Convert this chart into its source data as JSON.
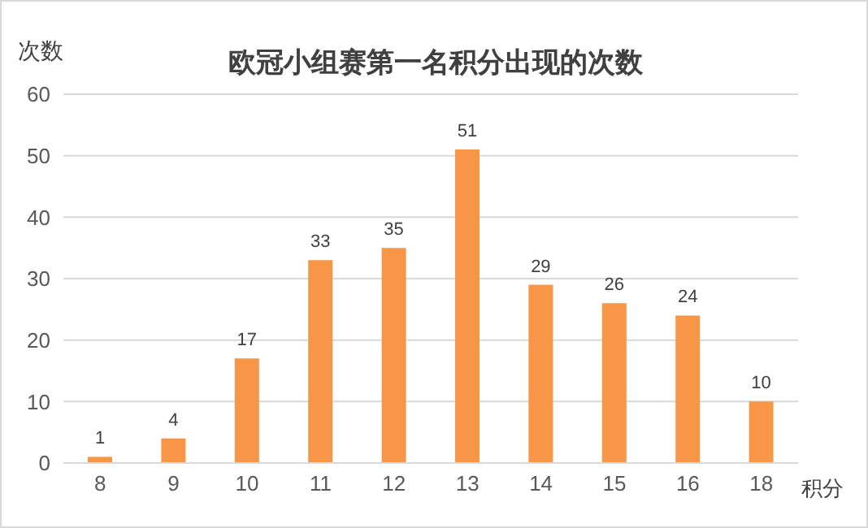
{
  "chart_data": {
    "type": "bar",
    "title": "欧冠小组赛第一名积分出现的次数",
    "ylabel": "次数",
    "xlabel": "积分",
    "categories": [
      "8",
      "9",
      "10",
      "11",
      "12",
      "13",
      "14",
      "15",
      "16",
      "18"
    ],
    "values": [
      1,
      4,
      17,
      33,
      35,
      51,
      29,
      26,
      24,
      10
    ],
    "color": "#f79646",
    "ylim": [
      0,
      60
    ],
    "yticks": [
      0,
      10,
      20,
      30,
      40,
      50,
      60
    ],
    "grid": "y",
    "data_labels": true
  }
}
